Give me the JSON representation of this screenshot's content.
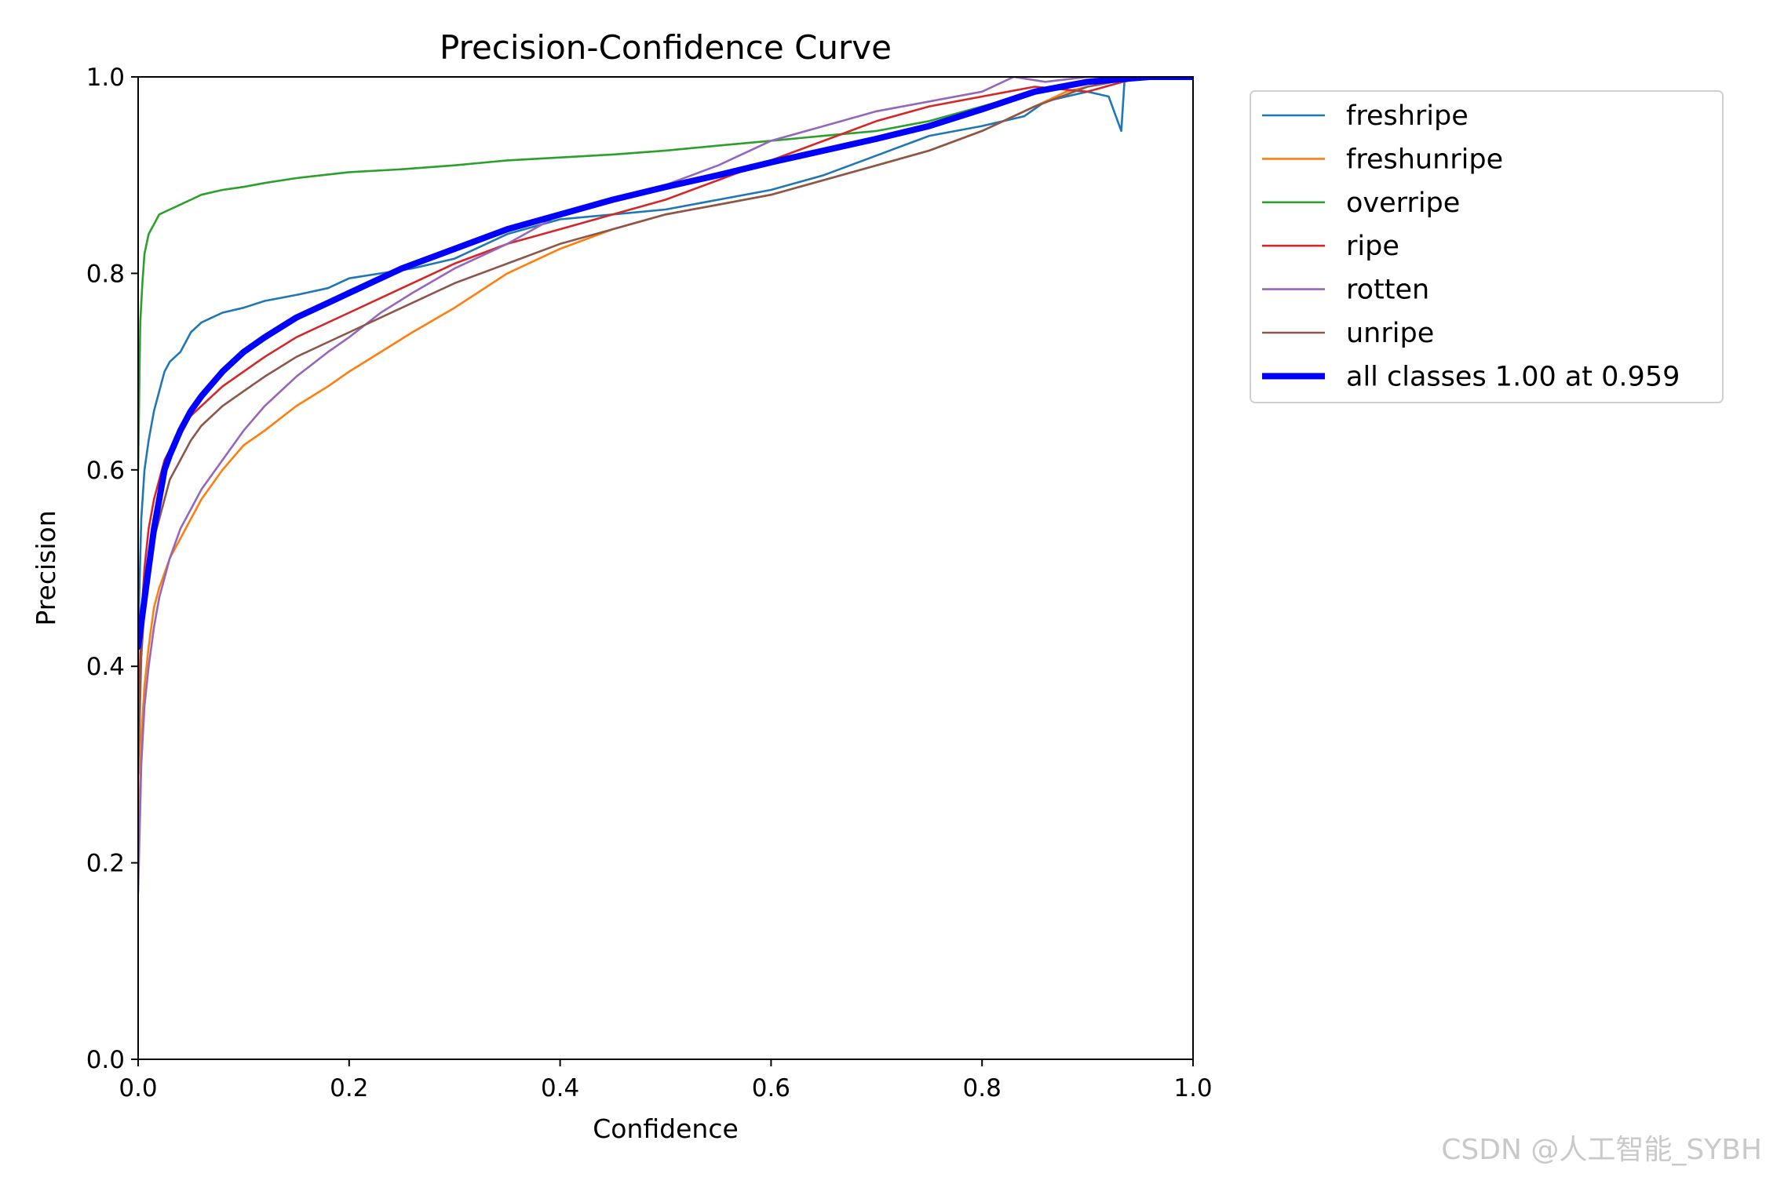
{
  "chart_data": {
    "type": "line",
    "title": "Precision-Confidence Curve",
    "xlabel": "Confidence",
    "ylabel": "Precision",
    "xlim": [
      0,
      1
    ],
    "ylim": [
      0,
      1
    ],
    "x_ticks": [
      "0.0",
      "0.2",
      "0.4",
      "0.6",
      "0.8",
      "1.0"
    ],
    "y_ticks": [
      "0.0",
      "0.2",
      "0.4",
      "0.6",
      "0.8",
      "1.0"
    ],
    "grid": false,
    "legend_position": "outside-top-right",
    "series": [
      {
        "name": "freshripe",
        "color": "#1f77b4",
        "width": "thin",
        "x": [
          0.0,
          0.003,
          0.006,
          0.01,
          0.015,
          0.02,
          0.025,
          0.03,
          0.04,
          0.05,
          0.06,
          0.07,
          0.08,
          0.1,
          0.12,
          0.15,
          0.18,
          0.2,
          0.23,
          0.26,
          0.3,
          0.35,
          0.4,
          0.45,
          0.5,
          0.55,
          0.6,
          0.65,
          0.7,
          0.75,
          0.8,
          0.84,
          0.86,
          0.88,
          0.9,
          0.92,
          0.932,
          0.935,
          0.95,
          1.0
        ],
        "y": [
          0.43,
          0.55,
          0.6,
          0.63,
          0.66,
          0.68,
          0.7,
          0.71,
          0.72,
          0.74,
          0.75,
          0.755,
          0.76,
          0.765,
          0.772,
          0.778,
          0.785,
          0.795,
          0.8,
          0.805,
          0.815,
          0.84,
          0.855,
          0.86,
          0.865,
          0.875,
          0.885,
          0.9,
          0.92,
          0.94,
          0.95,
          0.96,
          0.975,
          0.98,
          0.985,
          0.98,
          0.945,
          0.995,
          1.0,
          1.0
        ]
      },
      {
        "name": "freshunripe",
        "color": "#ff7f0e",
        "width": "thin",
        "x": [
          0.0,
          0.003,
          0.006,
          0.01,
          0.015,
          0.02,
          0.03,
          0.04,
          0.05,
          0.06,
          0.08,
          0.1,
          0.12,
          0.15,
          0.18,
          0.2,
          0.23,
          0.26,
          0.3,
          0.35,
          0.4,
          0.45,
          0.5,
          0.55,
          0.6,
          0.65,
          0.7,
          0.75,
          0.8,
          0.85,
          0.88,
          0.9,
          0.95,
          1.0
        ],
        "y": [
          0.2,
          0.33,
          0.38,
          0.42,
          0.46,
          0.48,
          0.51,
          0.53,
          0.55,
          0.57,
          0.6,
          0.625,
          0.64,
          0.665,
          0.685,
          0.7,
          0.72,
          0.74,
          0.765,
          0.8,
          0.825,
          0.845,
          0.86,
          0.87,
          0.88,
          0.895,
          0.91,
          0.925,
          0.945,
          0.97,
          0.985,
          0.99,
          1.0,
          1.0
        ]
      },
      {
        "name": "overripe",
        "color": "#2ca02c",
        "width": "thin",
        "x": [
          0.0,
          0.002,
          0.004,
          0.006,
          0.01,
          0.015,
          0.02,
          0.03,
          0.04,
          0.05,
          0.06,
          0.08,
          0.1,
          0.12,
          0.15,
          0.2,
          0.25,
          0.3,
          0.35,
          0.4,
          0.45,
          0.5,
          0.55,
          0.6,
          0.65,
          0.7,
          0.75,
          0.8,
          0.85,
          0.9,
          0.95,
          1.0
        ],
        "y": [
          0.6,
          0.75,
          0.79,
          0.82,
          0.84,
          0.85,
          0.86,
          0.865,
          0.87,
          0.875,
          0.88,
          0.885,
          0.888,
          0.892,
          0.897,
          0.903,
          0.906,
          0.91,
          0.915,
          0.918,
          0.921,
          0.925,
          0.93,
          0.935,
          0.94,
          0.945,
          0.955,
          0.97,
          0.985,
          0.995,
          1.0,
          1.0
        ]
      },
      {
        "name": "ripe",
        "color": "#d62728",
        "width": "thin",
        "x": [
          0.0,
          0.003,
          0.006,
          0.01,
          0.015,
          0.02,
          0.025,
          0.03,
          0.04,
          0.05,
          0.06,
          0.08,
          0.1,
          0.12,
          0.15,
          0.18,
          0.2,
          0.25,
          0.3,
          0.35,
          0.4,
          0.45,
          0.5,
          0.55,
          0.6,
          0.65,
          0.7,
          0.75,
          0.8,
          0.85,
          0.9,
          0.95,
          1.0
        ],
        "y": [
          0.33,
          0.45,
          0.5,
          0.54,
          0.57,
          0.59,
          0.61,
          0.62,
          0.64,
          0.655,
          0.665,
          0.685,
          0.7,
          0.715,
          0.735,
          0.75,
          0.76,
          0.785,
          0.81,
          0.83,
          0.845,
          0.86,
          0.875,
          0.895,
          0.915,
          0.935,
          0.955,
          0.97,
          0.98,
          0.99,
          0.985,
          1.0,
          1.0
        ]
      },
      {
        "name": "rotten",
        "color": "#9467bd",
        "width": "thin",
        "x": [
          0.0,
          0.003,
          0.006,
          0.01,
          0.015,
          0.02,
          0.03,
          0.04,
          0.05,
          0.06,
          0.08,
          0.1,
          0.12,
          0.15,
          0.18,
          0.2,
          0.23,
          0.26,
          0.3,
          0.35,
          0.4,
          0.45,
          0.5,
          0.55,
          0.6,
          0.65,
          0.7,
          0.75,
          0.8,
          0.83,
          0.86,
          0.9,
          0.95,
          1.0
        ],
        "y": [
          0.17,
          0.3,
          0.36,
          0.4,
          0.44,
          0.47,
          0.51,
          0.54,
          0.56,
          0.58,
          0.61,
          0.64,
          0.665,
          0.695,
          0.72,
          0.735,
          0.76,
          0.78,
          0.805,
          0.83,
          0.86,
          0.875,
          0.89,
          0.91,
          0.935,
          0.95,
          0.965,
          0.975,
          0.985,
          1.0,
          0.995,
          1.0,
          1.0,
          1.0
        ]
      },
      {
        "name": "unripe",
        "color": "#8c564b",
        "width": "thin",
        "x": [
          0.0,
          0.003,
          0.006,
          0.01,
          0.015,
          0.02,
          0.025,
          0.03,
          0.04,
          0.05,
          0.06,
          0.08,
          0.1,
          0.12,
          0.15,
          0.18,
          0.2,
          0.25,
          0.3,
          0.35,
          0.4,
          0.45,
          0.5,
          0.55,
          0.6,
          0.65,
          0.7,
          0.75,
          0.8,
          0.85,
          0.9,
          0.95,
          1.0
        ],
        "y": [
          0.29,
          0.41,
          0.46,
          0.5,
          0.53,
          0.55,
          0.57,
          0.59,
          0.61,
          0.63,
          0.645,
          0.665,
          0.68,
          0.695,
          0.715,
          0.73,
          0.74,
          0.765,
          0.79,
          0.81,
          0.83,
          0.845,
          0.86,
          0.87,
          0.88,
          0.895,
          0.91,
          0.925,
          0.945,
          0.97,
          0.99,
          1.0,
          1.0
        ]
      },
      {
        "name": "all classes 1.00 at 0.959",
        "color": "#0000ff",
        "width": "thick",
        "x": [
          0.0,
          0.005,
          0.01,
          0.015,
          0.02,
          0.025,
          0.03,
          0.04,
          0.05,
          0.06,
          0.08,
          0.1,
          0.12,
          0.15,
          0.18,
          0.2,
          0.25,
          0.3,
          0.35,
          0.4,
          0.45,
          0.5,
          0.55,
          0.6,
          0.65,
          0.7,
          0.75,
          0.8,
          0.85,
          0.9,
          0.959,
          1.0
        ],
        "y": [
          0.42,
          0.46,
          0.5,
          0.54,
          0.57,
          0.6,
          0.615,
          0.64,
          0.66,
          0.675,
          0.7,
          0.72,
          0.735,
          0.755,
          0.77,
          0.78,
          0.805,
          0.825,
          0.845,
          0.86,
          0.875,
          0.888,
          0.9,
          0.913,
          0.925,
          0.937,
          0.95,
          0.967,
          0.985,
          0.995,
          1.0,
          1.0
        ]
      }
    ]
  },
  "watermark": "CSDN @人工智能_SYBH"
}
